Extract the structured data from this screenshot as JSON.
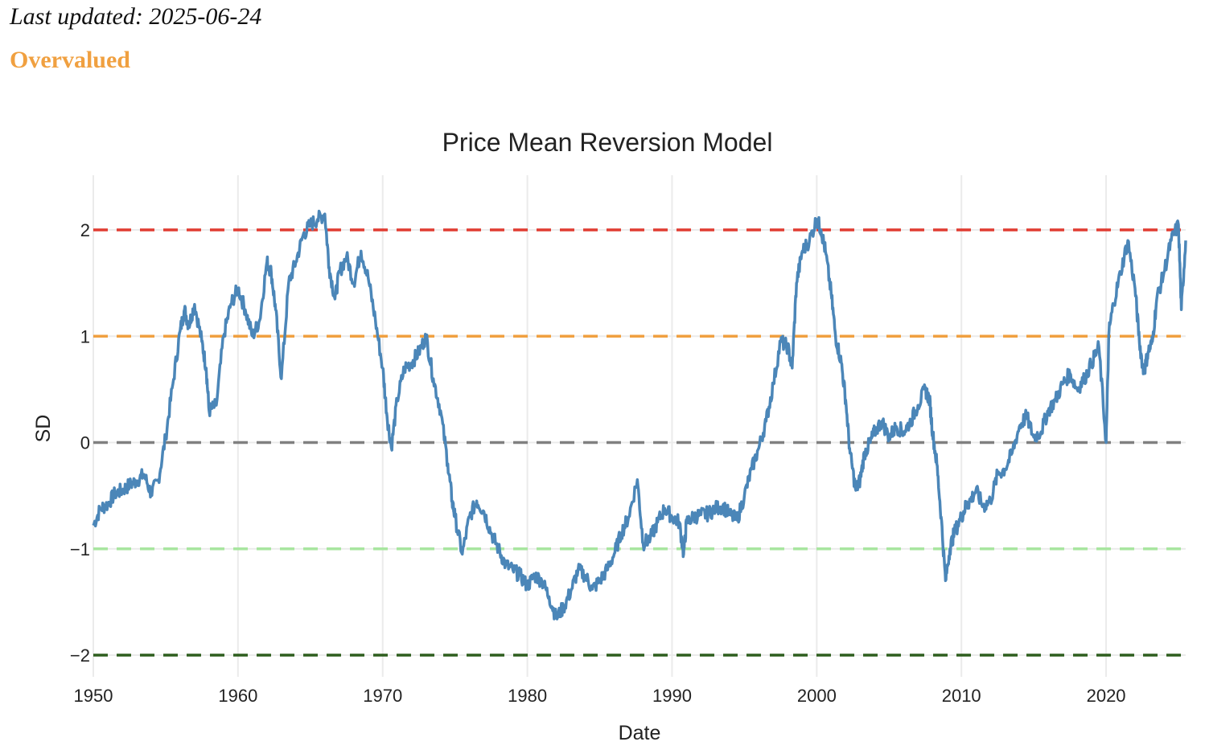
{
  "header": {
    "last_updated": "Last updated: 2025-06-24",
    "status": "Overvalued",
    "status_color": "#F0A040"
  },
  "chart_data": {
    "type": "line",
    "title": "Price Mean Reversion Model",
    "xlabel": "Date",
    "ylabel": "SD",
    "xlim": [
      1950,
      2025.5
    ],
    "ylim": [
      -2.2,
      2.5
    ],
    "x_ticks": [
      1950,
      1960,
      1970,
      1980,
      1990,
      2000,
      2010,
      2020
    ],
    "y_ticks": [
      {
        "value": 2,
        "label": "2"
      },
      {
        "value": 1,
        "label": "1"
      },
      {
        "value": 0,
        "label": "0"
      },
      {
        "value": -1,
        "label": "−1"
      },
      {
        "value": -2,
        "label": "−2"
      }
    ],
    "grid": true,
    "reference_lines": [
      {
        "name": "+2 SD",
        "value": 2,
        "color": "#E03C31",
        "style": "dashed"
      },
      {
        "name": "+1 SD",
        "value": 1,
        "color": "#F0A040",
        "style": "dashed"
      },
      {
        "name": "Mean",
        "value": 0,
        "color": "#808080",
        "style": "dashed"
      },
      {
        "name": "-1 SD",
        "value": -1,
        "color": "#A8E6A0",
        "style": "dashed"
      },
      {
        "name": "-2 SD",
        "value": -2,
        "color": "#2E5E1E",
        "style": "dashed"
      }
    ],
    "series": [
      {
        "name": "SD",
        "color": "#4B86B8",
        "x": [
          1950.0,
          1950.5,
          1951.0,
          1951.5,
          1952.0,
          1952.5,
          1953.0,
          1953.5,
          1954.0,
          1954.5,
          1955.0,
          1955.5,
          1956.0,
          1956.3,
          1956.6,
          1957.0,
          1957.5,
          1957.8,
          1958.0,
          1958.5,
          1959.0,
          1959.5,
          1960.0,
          1960.5,
          1961.0,
          1961.5,
          1962.0,
          1962.3,
          1962.6,
          1963.0,
          1963.5,
          1964.0,
          1964.5,
          1965.0,
          1965.5,
          1966.0,
          1966.3,
          1966.7,
          1967.0,
          1967.5,
          1968.0,
          1968.5,
          1969.0,
          1969.5,
          1970.0,
          1970.3,
          1970.6,
          1971.0,
          1971.5,
          1972.0,
          1972.5,
          1973.0,
          1973.5,
          1974.0,
          1974.5,
          1974.8,
          1975.0,
          1975.5,
          1976.0,
          1976.5,
          1977.0,
          1977.5,
          1978.0,
          1978.5,
          1979.0,
          1979.5,
          1980.0,
          1980.5,
          1981.0,
          1981.5,
          1982.0,
          1982.5,
          1983.0,
          1983.5,
          1984.0,
          1984.5,
          1985.0,
          1985.5,
          1986.0,
          1986.5,
          1987.0,
          1987.6,
          1988.0,
          1988.5,
          1989.0,
          1989.5,
          1990.0,
          1990.5,
          1990.8,
          1991.0,
          1991.5,
          1992.0,
          1992.5,
          1993.0,
          1993.5,
          1994.0,
          1994.5,
          1995.0,
          1995.5,
          1996.0,
          1996.5,
          1997.0,
          1997.5,
          1998.0,
          1998.3,
          1998.6,
          1999.0,
          1999.5,
          2000.0,
          2000.3,
          2000.6,
          2001.0,
          2001.3,
          2001.7,
          2002.0,
          2002.3,
          2002.7,
          2003.0,
          2003.3,
          2003.7,
          2004.0,
          2004.5,
          2005.0,
          2005.5,
          2006.0,
          2006.5,
          2007.0,
          2007.5,
          2007.8,
          2008.0,
          2008.3,
          2008.6,
          2008.9,
          2009.2,
          2009.5,
          2010.0,
          2010.3,
          2010.6,
          2011.0,
          2011.5,
          2012.0,
          2012.5,
          2013.0,
          2013.5,
          2014.0,
          2014.5,
          2015.0,
          2015.5,
          2016.0,
          2016.5,
          2017.0,
          2017.5,
          2018.0,
          2018.5,
          2019.0,
          2019.5,
          2020.0,
          2020.2,
          2020.5,
          2021.0,
          2021.5,
          2022.0,
          2022.3,
          2022.6,
          2022.9,
          2023.2,
          2023.5,
          2024.0,
          2024.5,
          2025.0,
          2025.2,
          2025.5
        ],
        "y": [
          -0.78,
          -0.62,
          -0.58,
          -0.48,
          -0.45,
          -0.4,
          -0.36,
          -0.3,
          -0.48,
          -0.35,
          0.05,
          0.55,
          1.05,
          1.25,
          1.1,
          1.3,
          0.95,
          0.7,
          0.3,
          0.35,
          1.0,
          1.3,
          1.45,
          1.25,
          1.0,
          1.15,
          1.7,
          1.6,
          1.25,
          0.6,
          1.5,
          1.7,
          1.95,
          2.05,
          2.1,
          2.15,
          1.65,
          1.35,
          1.6,
          1.75,
          1.5,
          1.8,
          1.55,
          1.15,
          0.7,
          0.25,
          -0.05,
          0.4,
          0.7,
          0.75,
          0.85,
          1.0,
          0.6,
          0.3,
          -0.2,
          -0.55,
          -0.7,
          -1.05,
          -0.7,
          -0.55,
          -0.65,
          -0.85,
          -1.0,
          -1.15,
          -1.2,
          -1.25,
          -1.35,
          -1.25,
          -1.3,
          -1.45,
          -1.65,
          -1.55,
          -1.4,
          -1.2,
          -1.25,
          -1.38,
          -1.3,
          -1.2,
          -1.05,
          -0.85,
          -0.7,
          -0.35,
          -0.95,
          -0.9,
          -0.75,
          -0.62,
          -0.7,
          -0.75,
          -1.05,
          -0.75,
          -0.7,
          -0.68,
          -0.67,
          -0.62,
          -0.6,
          -0.68,
          -0.73,
          -0.5,
          -0.25,
          -0.05,
          0.2,
          0.55,
          0.95,
          0.9,
          0.7,
          1.5,
          1.8,
          1.9,
          2.1,
          2.0,
          1.8,
          1.4,
          1.0,
          0.75,
          0.4,
          -0.1,
          -0.45,
          -0.35,
          -0.1,
          0.0,
          0.1,
          0.2,
          0.05,
          0.15,
          0.1,
          0.2,
          0.35,
          0.5,
          0.4,
          0.1,
          -0.2,
          -0.7,
          -1.3,
          -1.0,
          -0.85,
          -0.7,
          -0.6,
          -0.55,
          -0.45,
          -0.6,
          -0.55,
          -0.3,
          -0.25,
          -0.1,
          0.15,
          0.25,
          0.05,
          0.1,
          0.3,
          0.4,
          0.55,
          0.65,
          0.5,
          0.6,
          0.75,
          0.9,
          0.0,
          1.05,
          1.3,
          1.6,
          1.9,
          1.45,
          0.95,
          0.65,
          0.85,
          0.95,
          1.35,
          1.6,
          1.9,
          2.05,
          1.25,
          1.9
        ]
      }
    ]
  }
}
